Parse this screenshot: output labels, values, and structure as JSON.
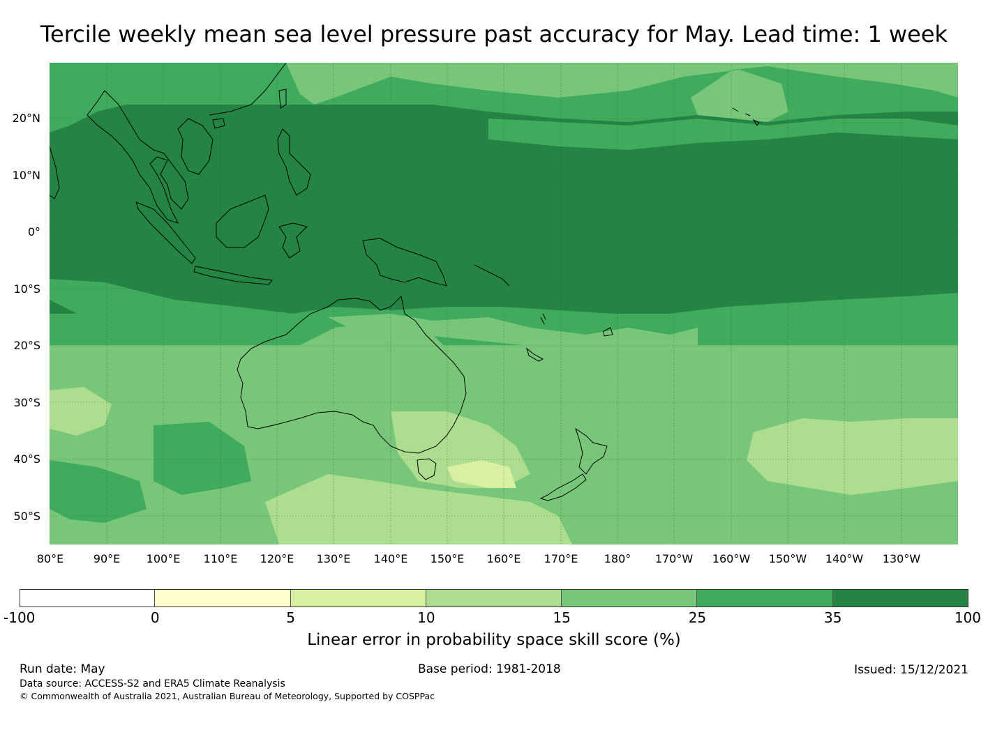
{
  "title": "Tercile weekly mean sea level pressure past accuracy for May. Lead time: 1 week",
  "map": {
    "lat_labels": [
      "20°N",
      "10°N",
      "0°",
      "10°S",
      "20°S",
      "30°S",
      "40°S",
      "50°S"
    ],
    "lon_labels": [
      "80°E",
      "90°E",
      "100°E",
      "110°E",
      "120°E",
      "130°E",
      "140°E",
      "150°E",
      "160°E",
      "170°E",
      "180°",
      "170°W",
      "160°W",
      "150°W",
      "140°W",
      "130°W"
    ],
    "region": "Indo-Pacific, Australia, New Zealand",
    "gridlines": true
  },
  "colorbar": {
    "ticks": [
      "-100",
      "0",
      "5",
      "10",
      "15",
      "25",
      "35",
      "100"
    ],
    "colors": [
      "#ffffff",
      "#ffffcc",
      "#d9f0a3",
      "#addd8e",
      "#78c679",
      "#41ab5d",
      "#238443"
    ],
    "label": "Linear error in probability space skill score (%)"
  },
  "footer": {
    "run_date": "Run date: May",
    "base_period": "Base period: 1981-2018",
    "issued": "Issued: 15/12/2021",
    "data_source": "Data source: ACCESS-S2 and ERA5 Climate Reanalysis",
    "copyright": "© Commonwealth of Australia 2021, Australian Bureau of Meteorology, Supported by COSPPac"
  }
}
